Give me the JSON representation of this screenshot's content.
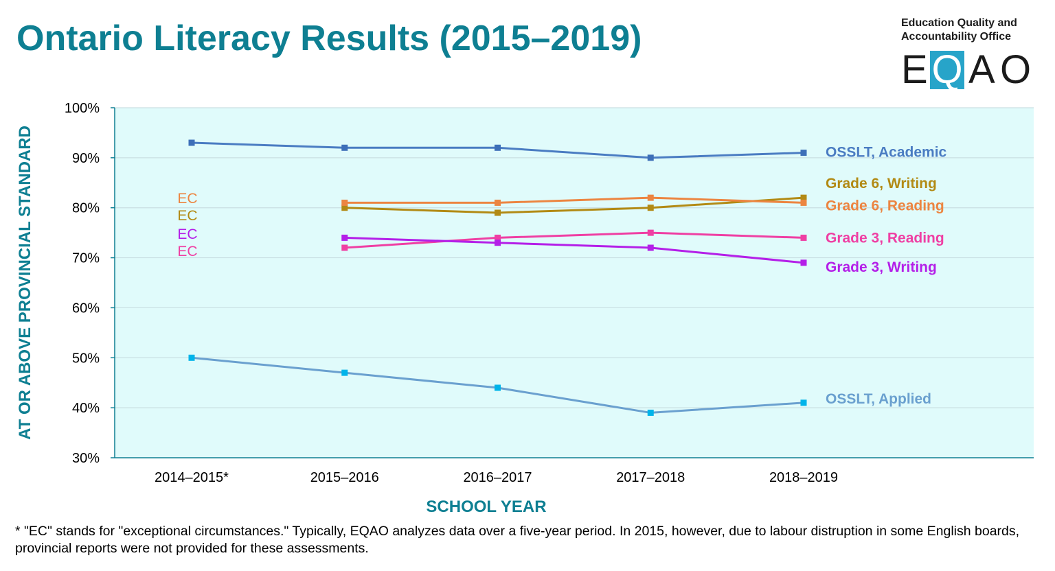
{
  "title": "Ontario Literacy Results (2015–2019)",
  "logo": {
    "line1": "Education Quality and",
    "line2": "Accountability Office",
    "letters": [
      "E",
      "Q",
      "A",
      "O"
    ]
  },
  "footnote": "* \"EC\" stands for \"exceptional circumstances.\" Typically, EQAO analyzes data over a five-year period. In 2015, however, due to labour distruption in some English boards, provincial reports were not provided for these assessments.",
  "chart_data": {
    "type": "line",
    "xlabel": "SCHOOL YEAR",
    "ylabel": "AT OR ABOVE PROVINCIAL STANDARD",
    "categories": [
      "2014–2015*",
      "2015–2016",
      "2016–2017",
      "2017–2018",
      "2018–2019"
    ],
    "ylim": [
      30,
      100
    ],
    "yticks": [
      30,
      40,
      50,
      60,
      70,
      80,
      90,
      100
    ],
    "ytick_labels": [
      "30%",
      "40%",
      "50%",
      "60%",
      "70%",
      "80%",
      "90%",
      "100%"
    ],
    "grid": true,
    "plot_background": "#e0fbfb",
    "series": [
      {
        "name": "OSSLT, Academic",
        "color": "#4a7cc2",
        "marker_color": "#3d6fb8",
        "label_color": "#4a7cc2",
        "values": [
          93,
          92,
          92,
          90,
          91
        ]
      },
      {
        "name": "Grade 6, Writing",
        "color": "#b28a14",
        "marker_color": "#b28a14",
        "label_color": "#b28a14",
        "values": [
          null,
          80,
          79,
          80,
          82
        ]
      },
      {
        "name": "Grade 6, Reading",
        "color": "#ec8541",
        "marker_color": "#ec8541",
        "label_color": "#ec8541",
        "values": [
          null,
          81,
          81,
          82,
          81
        ]
      },
      {
        "name": "Grade 3, Reading",
        "color": "#ef3fa3",
        "marker_color": "#ef3fa3",
        "label_color": "#ef3fa3",
        "values": [
          null,
          72,
          74,
          75,
          74
        ]
      },
      {
        "name": "Grade 3, Writing",
        "color": "#b41fe8",
        "marker_color": "#b41fe8",
        "label_color": "#b41fe8",
        "values": [
          null,
          74,
          73,
          72,
          69
        ]
      },
      {
        "name": "OSSLT, Applied",
        "color": "#6aa0cf",
        "marker_color": "#00b4ea",
        "label_color": "#6aa0cf",
        "values": [
          50,
          47,
          44,
          39,
          41
        ]
      }
    ],
    "annotations": [
      {
        "text": "EC",
        "color": "#ec8541"
      },
      {
        "text": "EC",
        "color": "#b28a14"
      },
      {
        "text": "EC",
        "color": "#b41fe8"
      },
      {
        "text": "EC",
        "color": "#ef3fa3"
      }
    ]
  }
}
